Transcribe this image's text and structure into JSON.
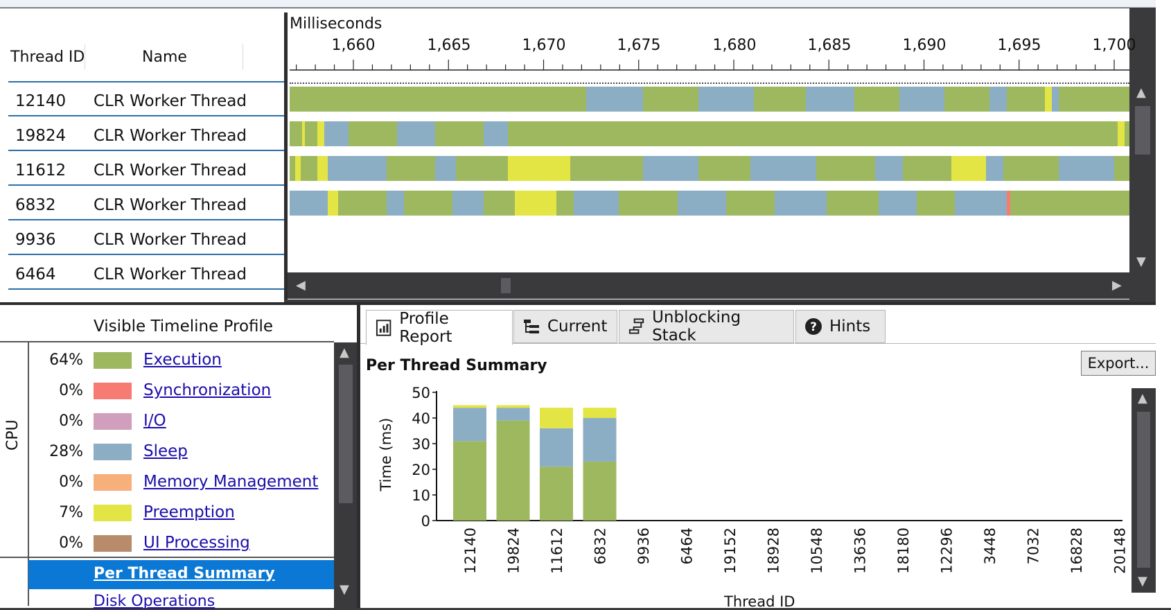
{
  "header": {
    "thread_id_col": "Thread ID",
    "name_col": "Name",
    "ms_label": "Milliseconds"
  },
  "ticks": [
    "1,660",
    "1,665",
    "1,670",
    "1,675",
    "1,680",
    "1,685",
    "1,690",
    "1,695",
    "1,700"
  ],
  "threads": [
    {
      "id": "12140",
      "name": "CLR Worker Thread"
    },
    {
      "id": "19824",
      "name": "CLR Worker Thread"
    },
    {
      "id": "11612",
      "name": "CLR Worker Thread"
    },
    {
      "id": "6832",
      "name": "CLR Worker Thread"
    },
    {
      "id": "9936",
      "name": "CLR Worker Thread"
    },
    {
      "id": "6464",
      "name": "CLR Worker Thread"
    }
  ],
  "colors": {
    "execution": "#9db85f",
    "synchronization": "#f77b72",
    "io": "#d19ebd",
    "sleep": "#8caec5",
    "memory": "#f7b07c",
    "preemption": "#e3e545",
    "ui": "#b88c6a"
  },
  "profile": {
    "title": "Visible Timeline Profile",
    "cpu_label": "CPU",
    "items": [
      {
        "pct": "64%",
        "label": "Execution",
        "color": "#9db85f"
      },
      {
        "pct": "0%",
        "label": "Synchronization",
        "color": "#f77b72"
      },
      {
        "pct": "0%",
        "label": "I/O",
        "color": "#d19ebd"
      },
      {
        "pct": "28%",
        "label": "Sleep",
        "color": "#8caec5"
      },
      {
        "pct": "0%",
        "label": "Memory Management",
        "color": "#f7b07c"
      },
      {
        "pct": "7%",
        "label": "Preemption",
        "color": "#e3e545"
      },
      {
        "pct": "0%",
        "label": "UI Processing",
        "color": "#b88c6a"
      }
    ],
    "selected": "Per Thread Summary",
    "next_item": "Disk Operations"
  },
  "tabs": [
    {
      "label": "Profile Report",
      "icon": "report-icon"
    },
    {
      "label": "Current",
      "icon": "tree-icon"
    },
    {
      "label": "Unblocking Stack",
      "icon": "stack-icon"
    },
    {
      "label": "Hints",
      "icon": "help-icon"
    }
  ],
  "report": {
    "title": "Per Thread Summary",
    "export_label": "Export..."
  },
  "chart_data": {
    "type": "bar",
    "stacked": true,
    "ylabel": "Time (ms)",
    "xlabel": "Thread ID",
    "ylim": [
      0,
      50
    ],
    "yticks": [
      0,
      10,
      20,
      30,
      40,
      50
    ],
    "categories": [
      "12140",
      "19824",
      "11612",
      "6832",
      "9936",
      "6464",
      "19152",
      "18928",
      "10548",
      "13636",
      "18180",
      "12296",
      "3448",
      "7032",
      "16828",
      "20148"
    ],
    "series": [
      {
        "name": "Execution",
        "color": "#9db85f",
        "values": [
          31,
          39,
          21,
          23,
          0,
          0,
          0,
          0,
          0,
          0,
          0,
          0,
          0,
          0,
          0,
          0
        ]
      },
      {
        "name": "Sleep",
        "color": "#8caec5",
        "values": [
          13,
          5,
          15,
          17,
          0,
          0,
          0,
          0,
          0,
          0,
          0,
          0,
          0,
          0,
          0,
          0
        ]
      },
      {
        "name": "Preemption",
        "color": "#e3e545",
        "values": [
          1,
          1,
          8,
          4,
          0,
          0,
          0,
          0,
          0,
          0,
          0,
          0,
          0,
          0,
          0,
          0
        ]
      }
    ]
  }
}
